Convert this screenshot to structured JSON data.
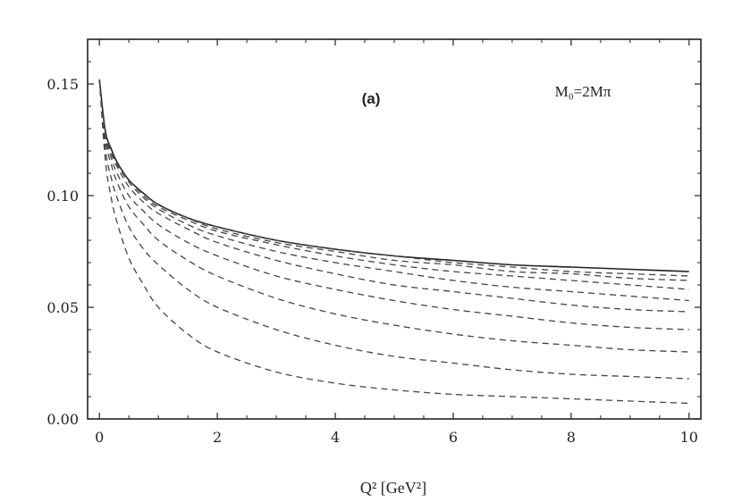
{
  "chart_data": {
    "type": "line",
    "title": "",
    "panel_label": "(a)",
    "annotation": "M₀=2Mπ",
    "xlabel": "Q² [GeV²]",
    "ylabel": "",
    "xlim": [
      -0.2,
      10.2
    ],
    "ylim": [
      0.0,
      0.17
    ],
    "x_ticks": [
      0,
      2,
      4,
      6,
      8,
      10
    ],
    "x_tick_labels": [
      "0",
      "2",
      "4",
      "6",
      "8",
      "10"
    ],
    "y_ticks": [
      0.0,
      0.05,
      0.1,
      0.15
    ],
    "y_tick_labels": [
      "0.00",
      "0.05",
      "0.10",
      "0.15"
    ],
    "grid": false,
    "x": [
      0,
      0.1,
      0.2,
      0.3,
      0.5,
      0.75,
      1,
      1.5,
      2,
      3,
      4,
      5,
      6,
      7,
      8,
      9,
      10
    ],
    "series": [
      {
        "style": "solid",
        "color": "#222222",
        "values": [
          0.152,
          0.129,
          0.121,
          0.115,
          0.107,
          0.101,
          0.096,
          0.09,
          0.086,
          0.08,
          0.076,
          0.073,
          0.071,
          0.069,
          0.068,
          0.067,
          0.066
        ]
      },
      {
        "style": "dashed",
        "color": "#444444",
        "values": [
          0.152,
          0.129,
          0.121,
          0.115,
          0.107,
          0.101,
          0.096,
          0.09,
          0.086,
          0.08,
          0.076,
          0.073,
          0.07,
          0.068,
          0.066,
          0.065,
          0.064
        ]
      },
      {
        "style": "dashed",
        "color": "#444444",
        "values": [
          0.152,
          0.129,
          0.121,
          0.115,
          0.107,
          0.101,
          0.096,
          0.09,
          0.085,
          0.079,
          0.075,
          0.071,
          0.069,
          0.066,
          0.065,
          0.063,
          0.062
        ]
      },
      {
        "style": "dashed",
        "color": "#444444",
        "values": [
          0.152,
          0.129,
          0.121,
          0.115,
          0.107,
          0.1,
          0.095,
          0.089,
          0.084,
          0.078,
          0.073,
          0.069,
          0.066,
          0.064,
          0.062,
          0.06,
          0.058
        ]
      },
      {
        "style": "dashed",
        "color": "#444444",
        "values": [
          0.152,
          0.128,
          0.12,
          0.114,
          0.106,
          0.099,
          0.094,
          0.087,
          0.082,
          0.075,
          0.07,
          0.066,
          0.062,
          0.059,
          0.057,
          0.055,
          0.053
        ]
      },
      {
        "style": "dashed",
        "color": "#444444",
        "values": [
          0.152,
          0.128,
          0.119,
          0.113,
          0.104,
          0.097,
          0.092,
          0.085,
          0.079,
          0.071,
          0.065,
          0.06,
          0.057,
          0.054,
          0.051,
          0.049,
          0.048
        ]
      },
      {
        "style": "dashed",
        "color": "#444444",
        "values": [
          0.152,
          0.127,
          0.117,
          0.11,
          0.1,
          0.093,
          0.087,
          0.079,
          0.073,
          0.064,
          0.058,
          0.053,
          0.049,
          0.046,
          0.043,
          0.041,
          0.04
        ]
      },
      {
        "style": "dashed",
        "color": "#444444",
        "values": [
          0.152,
          0.125,
          0.114,
          0.106,
          0.095,
          0.087,
          0.08,
          0.071,
          0.064,
          0.054,
          0.047,
          0.042,
          0.038,
          0.035,
          0.033,
          0.031,
          0.03
        ]
      },
      {
        "style": "dashed",
        "color": "#444444",
        "values": [
          0.152,
          0.121,
          0.108,
          0.099,
          0.086,
          0.076,
          0.069,
          0.058,
          0.05,
          0.04,
          0.033,
          0.028,
          0.025,
          0.022,
          0.02,
          0.019,
          0.018
        ]
      },
      {
        "style": "dashed",
        "color": "#444444",
        "values": [
          0.152,
          0.116,
          0.099,
          0.088,
          0.072,
          0.06,
          0.05,
          0.038,
          0.03,
          0.021,
          0.016,
          0.013,
          0.011,
          0.01,
          0.009,
          0.008,
          0.007
        ]
      }
    ]
  }
}
